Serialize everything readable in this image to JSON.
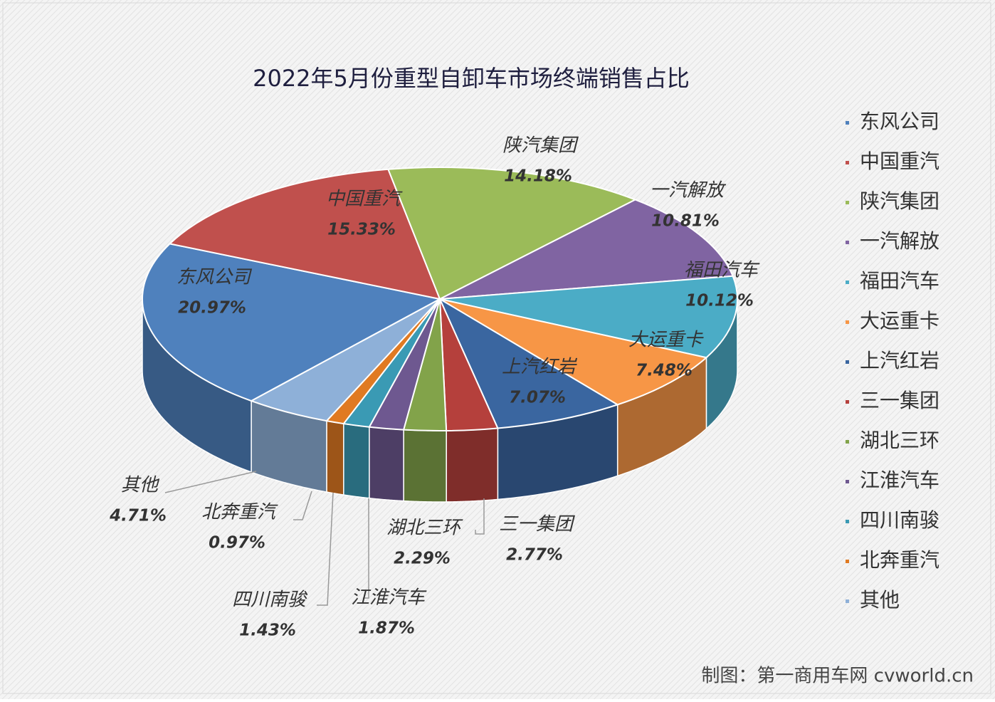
{
  "chart_data": {
    "type": "pie3d",
    "title": "2022年5月份重型自卸车市场终端销售占比",
    "categories": [
      "东风公司",
      "中国重汽",
      "陕汽集团",
      "一汽解放",
      "福田汽车",
      "大运重卡",
      "上汽红岩",
      "三一集团",
      "湖北三环",
      "江淮汽车",
      "四川南骏",
      "北奔重汽",
      "其他"
    ],
    "series": [
      {
        "values": [
          20.97,
          15.33,
          14.18,
          10.81,
          10.12,
          7.48,
          7.07,
          2.77,
          2.29,
          1.87,
          1.43,
          0.97,
          4.71
        ],
        "value_labels": [
          "20.97%",
          "15.33%",
          "14.18%",
          "10.81%",
          "10.12%",
          "7.48%",
          "7.07%",
          "2.77%",
          "2.29%",
          "1.87%",
          "1.43%",
          "0.97%",
          "4.71%"
        ]
      }
    ],
    "colors": [
      "#4f81bd",
      "#c0504d",
      "#9bbb59",
      "#8064a2",
      "#4bacc6",
      "#f79646",
      "#3a66a0",
      "#b5403c",
      "#82a34a",
      "#6e5890",
      "#3a9ab4",
      "#e07a22",
      "#8eb0d8"
    ],
    "legend": "right",
    "source": "制图：第一商用车网 cvworld.cn"
  }
}
